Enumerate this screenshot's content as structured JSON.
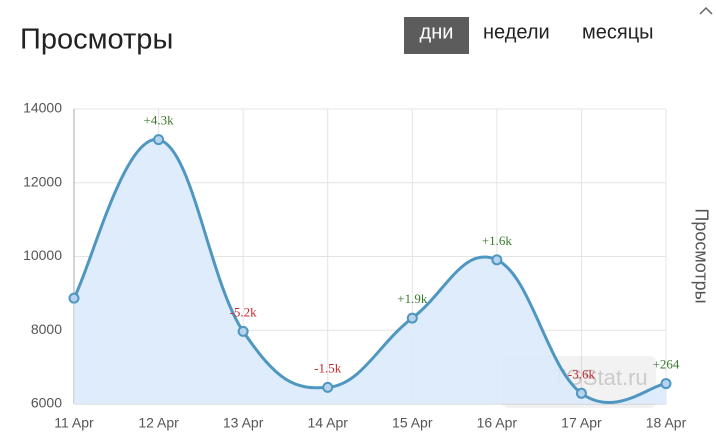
{
  "header": {
    "title": "Просмотры",
    "tabs": [
      "дни",
      "недели",
      "месяцы"
    ],
    "active_tab": 0
  },
  "chart_data": {
    "type": "line",
    "categories": [
      "11 Apr",
      "12 Apr",
      "13 Apr",
      "14 Apr",
      "15 Apr",
      "16 Apr",
      "17 Apr",
      "18 Apr"
    ],
    "series": [
      {
        "name": "Просмотры",
        "color": "#4f97c0",
        "fill": "#dceafc",
        "values": [
          8870,
          13170,
          7970,
          6450,
          8330,
          9910,
          6290,
          6554
        ]
      }
    ],
    "deltas": [
      null,
      "+4.3k",
      "-5.2k",
      "-1.5k",
      "+1.9k",
      "+1.6k",
      "-3.6k",
      "+264"
    ],
    "delta_colors": {
      "positive": "#3b7a2e",
      "negative": "#c2282f"
    },
    "y_label": "Просмотры",
    "ylim": [
      6000,
      14000
    ],
    "yticks": [
      6000,
      8000,
      10000,
      12000,
      14000
    ],
    "grid": true,
    "watermark": "TGStat.ru"
  }
}
